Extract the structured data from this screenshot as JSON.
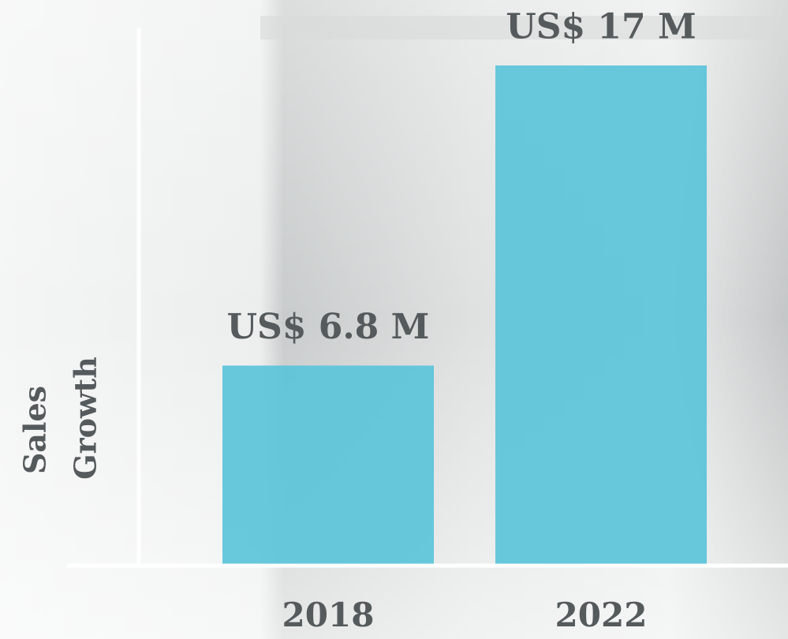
{
  "chart_data": {
    "type": "bar",
    "ylabel": [
      "Sales",
      "Growth"
    ],
    "categories": [
      "2018",
      "2022"
    ],
    "values": [
      6.8,
      17
    ],
    "value_labels": [
      "US$ 6.8 M",
      "US$ 17 M"
    ],
    "color": "#5bc3d9",
    "ylim": [
      0,
      17
    ]
  }
}
